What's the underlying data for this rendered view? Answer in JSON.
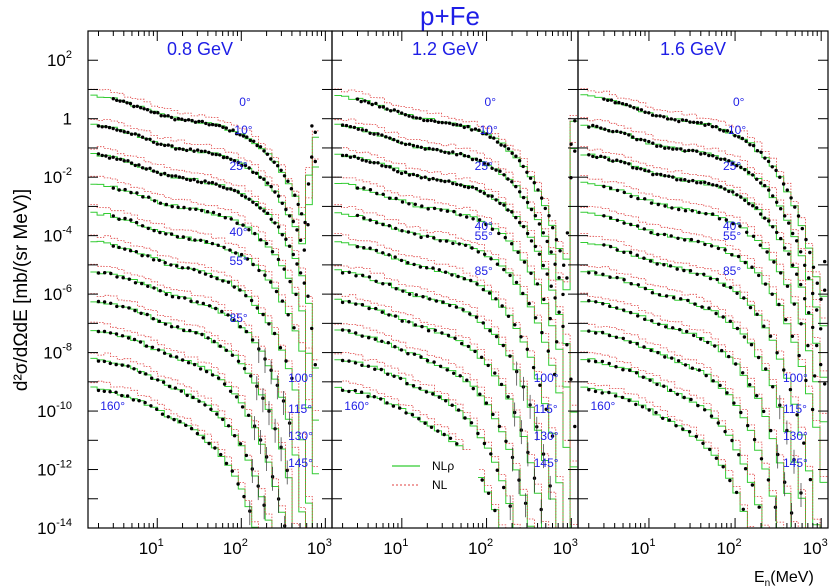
{
  "chart_data": {
    "type": "scatter",
    "title": "p+Fe",
    "ylabel": "d²σ/dΩdE [mb/(sr MeV)]",
    "xlabel": "E_n(MeV)",
    "xscale": "log",
    "yscale": "log",
    "xlim": [
      1.5,
      1200
    ],
    "ylim": [
      1e-14,
      1000.0
    ],
    "x_ticks": [
      {
        "base": "10",
        "exp": "1"
      },
      {
        "base": "10",
        "exp": "2"
      },
      {
        "base": "10",
        "exp": "3"
      }
    ],
    "y_ticks": [
      {
        "base": "10",
        "exp": "2"
      },
      {
        "base": "1",
        "exp": ""
      },
      {
        "base": "10",
        "exp": "-2"
      },
      {
        "base": "10",
        "exp": "-4"
      },
      {
        "base": "10",
        "exp": "-6"
      },
      {
        "base": "10",
        "exp": "-8"
      },
      {
        "base": "10",
        "exp": "-10"
      },
      {
        "base": "10",
        "exp": "-12"
      },
      {
        "base": "10",
        "exp": "-14"
      }
    ],
    "panels": [
      {
        "label": "0.8 GeV",
        "emax": 800
      },
      {
        "label": "1.2 GeV",
        "emax": 1200
      },
      {
        "label": "1.6 GeV",
        "emax": 1500
      }
    ],
    "angles": [
      {
        "label": "0°",
        "deg": 0,
        "decade_shift": 0
      },
      {
        "label": "10°",
        "deg": 10,
        "decade_shift": -1
      },
      {
        "label": "25°",
        "deg": 25,
        "decade_shift": -2
      },
      {
        "label": "40°",
        "deg": 40,
        "decade_shift": -3
      },
      {
        "label": "55°",
        "deg": 55,
        "decade_shift": -4
      },
      {
        "label": "85°",
        "deg": 85,
        "decade_shift": -5
      },
      {
        "label": "100°",
        "deg": 100,
        "decade_shift": -6
      },
      {
        "label": "115°",
        "deg": 115,
        "decade_shift": -7
      },
      {
        "label": "130°",
        "deg": 130,
        "decade_shift": -8
      },
      {
        "label": "145°",
        "deg": 145,
        "decade_shift": -9
      },
      {
        "label": "160°",
        "deg": 160,
        "decade_shift": -10
      }
    ],
    "legend": [
      {
        "name": "NLρ",
        "color": "#33cc33",
        "style": "solid"
      },
      {
        "name": "NL",
        "color": "#e04040",
        "style": "dotted"
      }
    ],
    "data_marker_color": "#000000"
  }
}
